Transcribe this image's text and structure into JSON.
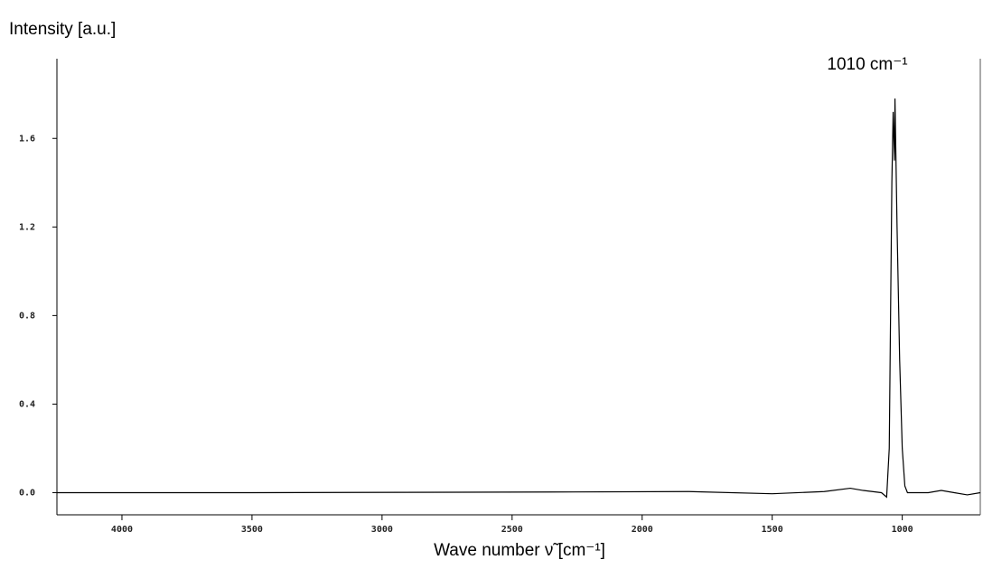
{
  "chart_data": {
    "type": "line",
    "y_label": "Intensity [a.u.]",
    "x_label": "Wave number ν̃ [cm⁻¹]",
    "annotation": "1010 cm⁻¹",
    "color": "#000000",
    "xlim": [
      4250,
      700
    ],
    "ylim": [
      -0.1,
      1.96
    ],
    "xticks": [
      4000,
      3500,
      3000,
      2500,
      2000,
      1500,
      1000
    ],
    "yticks": [
      {
        "value": 0,
        "label": "0.0"
      },
      0.4,
      0.8,
      1.2,
      1.6
    ],
    "x": [
      4250,
      3900,
      3500,
      2350,
      1820,
      1500,
      1300,
      1200,
      1150,
      1080,
      1060,
      1050,
      1040,
      1035,
      1030,
      1028,
      1020,
      1010,
      1000,
      990,
      980,
      900,
      850,
      800,
      750,
      700
    ],
    "values": [
      0,
      0,
      0,
      0.003,
      0.005,
      -0.005,
      0.005,
      0.02,
      0.01,
      0,
      -0.02,
      0.2,
      1.4,
      1.72,
      1.5,
      1.78,
      1.2,
      0.6,
      0.2,
      0.03,
      0,
      0,
      0.01,
      0,
      -0.01,
      0
    ]
  }
}
